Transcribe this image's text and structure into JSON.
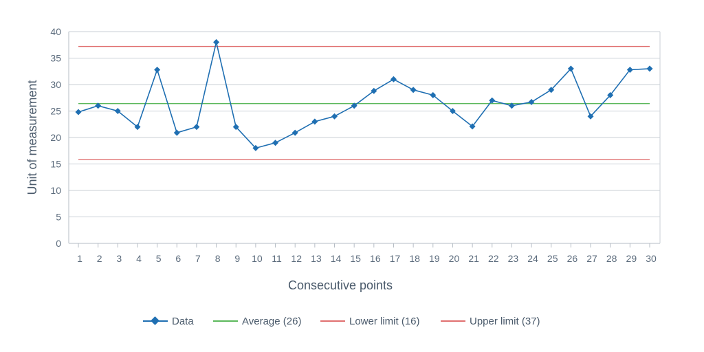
{
  "chart_data": {
    "type": "line",
    "title": "",
    "xlabel": "Consecutive points",
    "ylabel": "Unit of measurement",
    "categories": [
      1,
      2,
      3,
      4,
      5,
      6,
      7,
      8,
      9,
      10,
      11,
      12,
      13,
      14,
      15,
      16,
      17,
      18,
      19,
      20,
      21,
      22,
      23,
      24,
      25,
      26,
      27,
      28,
      29,
      30
    ],
    "ylim": [
      0,
      40
    ],
    "yticks": [
      0,
      5,
      10,
      15,
      20,
      25,
      30,
      35,
      40
    ],
    "grid": true,
    "series": [
      {
        "name": "Data",
        "color": "#1f6fb2",
        "marker": "diamond",
        "values": [
          24.8,
          26,
          25,
          22,
          32.8,
          20.9,
          22,
          38,
          22,
          18,
          19,
          20.9,
          23,
          24,
          26,
          28.8,
          31,
          29,
          28,
          25,
          22.1,
          27,
          26,
          26.7,
          29,
          33,
          24,
          28,
          32.8,
          33
        ]
      }
    ],
    "reference_lines": [
      {
        "name": "Average",
        "value": 26.4,
        "color": "#5cb85c"
      },
      {
        "name": "Lower limit",
        "value": 15.8,
        "color": "#e07070"
      },
      {
        "name": "Upper limit",
        "value": 37.2,
        "color": "#e07070"
      }
    ],
    "legend": {
      "position": "bottom",
      "items": [
        {
          "label": "Data",
          "color": "#1f6fb2",
          "marker": "diamond"
        },
        {
          "label": "Average (26)",
          "color": "#5cb85c"
        },
        {
          "label": "Lower limit (16)",
          "color": "#e07070"
        },
        {
          "label": "Upper limit (37)",
          "color": "#e07070"
        }
      ]
    }
  }
}
